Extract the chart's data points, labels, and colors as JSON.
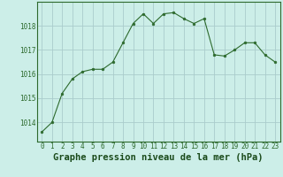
{
  "x": [
    0,
    1,
    2,
    3,
    4,
    5,
    6,
    7,
    8,
    9,
    10,
    11,
    12,
    13,
    14,
    15,
    16,
    17,
    18,
    19,
    20,
    21,
    22,
    23
  ],
  "y": [
    1013.6,
    1014.0,
    1015.2,
    1015.8,
    1016.1,
    1016.2,
    1016.2,
    1016.5,
    1017.3,
    1018.1,
    1018.5,
    1018.1,
    1018.5,
    1018.55,
    1018.3,
    1018.1,
    1018.3,
    1016.8,
    1016.75,
    1017.0,
    1017.3,
    1017.3,
    1016.8,
    1016.5
  ],
  "line_color": "#2d6a2d",
  "marker_color": "#2d6a2d",
  "bg_color": "#cceee8",
  "grid_color": "#aacccc",
  "xlabel": "Graphe pression niveau de la mer (hPa)",
  "xlabel_color": "#1a4a1a",
  "ylabel_ticks": [
    1014,
    1015,
    1016,
    1017,
    1018
  ],
  "xlim": [
    -0.5,
    23.5
  ],
  "ylim": [
    1013.2,
    1019.0
  ],
  "xticks": [
    0,
    1,
    2,
    3,
    4,
    5,
    6,
    7,
    8,
    9,
    10,
    11,
    12,
    13,
    14,
    15,
    16,
    17,
    18,
    19,
    20,
    21,
    22,
    23
  ],
  "tick_fontsize": 5.5,
  "xlabel_fontsize": 7.5,
  "border_color": "#2d6a2d"
}
